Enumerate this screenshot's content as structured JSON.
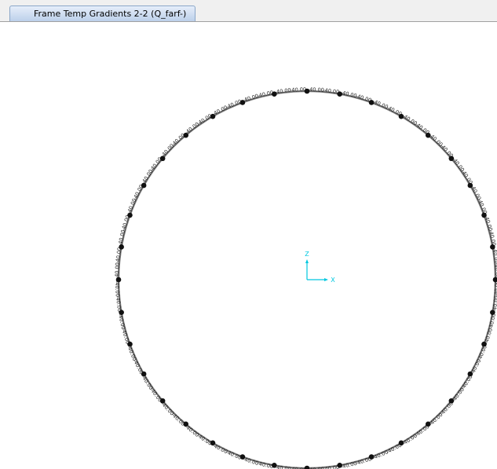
{
  "tab": {
    "title": "Frame Temp Gradients 2-2 (Q_farf-)"
  },
  "axes": {
    "z": "Z",
    "x": "X"
  },
  "frame_labels": [
    [
      "-40.00",
      "-40.00"
    ],
    [
      "-40.00",
      "-40.00"
    ],
    [
      "-40.00",
      "-40.00"
    ],
    [
      "-40.00",
      "-40.00"
    ],
    [
      "-40.00",
      "-40.00"
    ],
    [
      "-40.00",
      "-40.00"
    ],
    [
      "-40.00",
      "-40.00"
    ],
    [
      "-40.00",
      "-40.00"
    ],
    [
      "-40.00",
      "-40.00"
    ],
    [
      "-40.00",
      "-40.00"
    ],
    [
      "-40.00",
      "-40.00"
    ],
    [
      "-40.00",
      "-40.00"
    ],
    [
      "-40.00",
      "-40.00"
    ],
    [
      "-40.00",
      "-40.00"
    ],
    [
      "-40.00",
      "-40.00"
    ],
    [
      "-40.00",
      "-40.00"
    ],
    [
      "-40.00",
      "-40.00"
    ],
    [
      "-40.00",
      "-40.00"
    ],
    [
      "-40.00",
      "-40.00"
    ],
    [
      "-40.00",
      "-40.00"
    ],
    [
      "-40.00",
      "-40.00"
    ],
    [
      "-40.00",
      "-40.00"
    ],
    [
      "-40.00",
      "-40.00"
    ],
    [
      "-40.00",
      "-40.00"
    ],
    [
      "-40.00",
      "-40.00"
    ],
    [
      "-40.00",
      "-40.00"
    ],
    [
      "-40.00",
      "-40.00"
    ],
    [
      "-40.00",
      "-40.00"
    ],
    [
      "-40.00",
      "-40.00"
    ],
    [
      "-40.00",
      "-40.00"
    ],
    [
      "-40.00",
      "-40.00"
    ],
    [
      "-40.00",
      "-40.00"
    ],
    [
      "-40.00",
      "-40.00"
    ],
    [
      "-40.00",
      "-40.00"
    ],
    [
      "-40.00",
      "-40.00"
    ],
    [
      "-40.00",
      "-40.00"
    ]
  ]
}
